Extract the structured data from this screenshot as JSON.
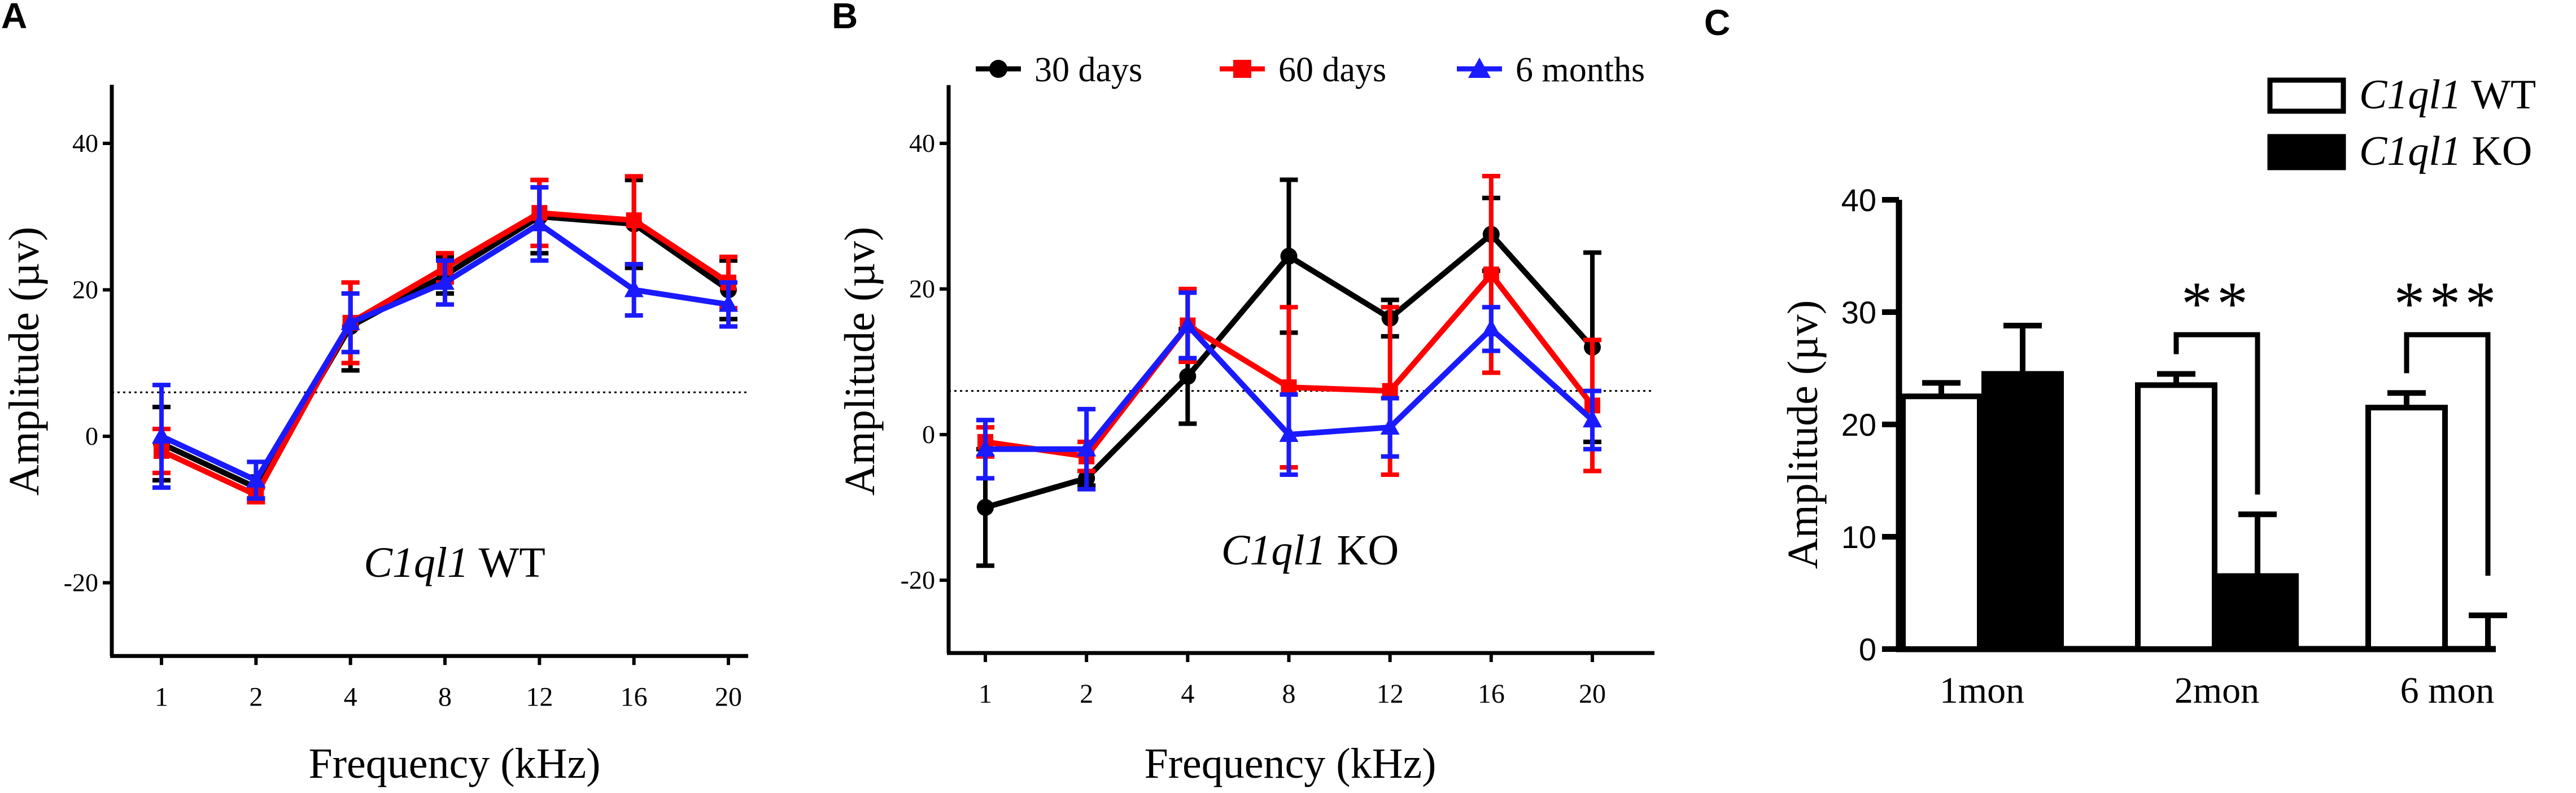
{
  "chart_data": [
    {
      "panel": "A",
      "type": "line",
      "annotation": {
        "gene": "C1ql1",
        "genotype": "WT"
      },
      "xlabel": "Frequency (kHz)",
      "ylabel": "Amplitude (µv)",
      "categories": [
        "1",
        "2",
        "4",
        "8",
        "12",
        "16",
        "20"
      ],
      "yticks": [
        "-20",
        "0",
        "20",
        "40"
      ],
      "ylim": [
        -30,
        48
      ],
      "threshold": 6,
      "series": [
        {
          "name": "30 days",
          "color": "#000000",
          "marker": "circle",
          "values": [
            -1,
            -7,
            15,
            22,
            30,
            29,
            20
          ],
          "errors": [
            5,
            1.5,
            6,
            2.5,
            5,
            6,
            4
          ]
        },
        {
          "name": "60 days",
          "color": "#ff0000",
          "marker": "square",
          "values": [
            -2,
            -8,
            15.5,
            23,
            30.5,
            29.5,
            21
          ],
          "errors": [
            3,
            1,
            5.5,
            2,
            4.5,
            6,
            3.5
          ]
        },
        {
          "name": "6 months",
          "color": "#1a1aff",
          "marker": "triangle",
          "values": [
            0,
            -6,
            15.5,
            21,
            29,
            20,
            18
          ],
          "errors": [
            7,
            2.5,
            4,
            3,
            5,
            3.5,
            3
          ]
        }
      ]
    },
    {
      "panel": "B",
      "type": "line",
      "annotation": {
        "gene": "C1ql1",
        "genotype": "KO"
      },
      "xlabel": "Frequency (kHz)",
      "ylabel": "Amplitude (µv)",
      "categories": [
        "1",
        "2",
        "4",
        "8",
        "12",
        "16",
        "20"
      ],
      "yticks": [
        "-20",
        "0",
        "20",
        "40"
      ],
      "ylim": [
        -30,
        48
      ],
      "threshold": 6,
      "legend": [
        "30 days",
        "60 days",
        "6 months"
      ],
      "series": [
        {
          "name": "30 days",
          "color": "#000000",
          "marker": "circle",
          "values": [
            -10,
            -6,
            8,
            24.5,
            16,
            27.5,
            12
          ],
          "errors": [
            8,
            1,
            6.5,
            10.5,
            2.5,
            5,
            13
          ]
        },
        {
          "name": "60 days",
          "color": "#ff0000",
          "marker": "square",
          "values": [
            -1,
            -3,
            15,
            6.5,
            6,
            22,
            4
          ],
          "errors": [
            2,
            2,
            5,
            11,
            11.5,
            13.5,
            9
          ]
        },
        {
          "name": "6 months",
          "color": "#1a1aff",
          "marker": "triangle",
          "values": [
            -2,
            -2,
            15,
            0,
            1,
            14.5,
            2
          ],
          "errors": [
            4,
            5.5,
            4.5,
            5.5,
            4,
            3,
            4
          ]
        }
      ]
    },
    {
      "panel": "C",
      "type": "bar",
      "ylabel": "Amplitude (µv)",
      "categories": [
        "1mon",
        "2mon",
        "6 mon"
      ],
      "yticks": [
        "0",
        "10",
        "20",
        "30",
        "40"
      ],
      "ylim": [
        0,
        40
      ],
      "legend": [
        {
          "gene": "C1ql1",
          "genotype": "WT",
          "fill": "white"
        },
        {
          "gene": "C1ql1",
          "genotype": "KO",
          "fill": "black"
        }
      ],
      "series": [
        {
          "name": "C1ql1 WT",
          "values": [
            22.5,
            23.5,
            21.5
          ],
          "errors": [
            1.2,
            1,
            1.3
          ]
        },
        {
          "name": "C1ql1 KO",
          "values": [
            24.5,
            6.5,
            0
          ],
          "errors": [
            4.3,
            5.5,
            3
          ]
        }
      ],
      "significance": [
        "",
        "**",
        "***"
      ]
    }
  ],
  "panels": {
    "a": "A",
    "b": "B",
    "c": "C"
  }
}
